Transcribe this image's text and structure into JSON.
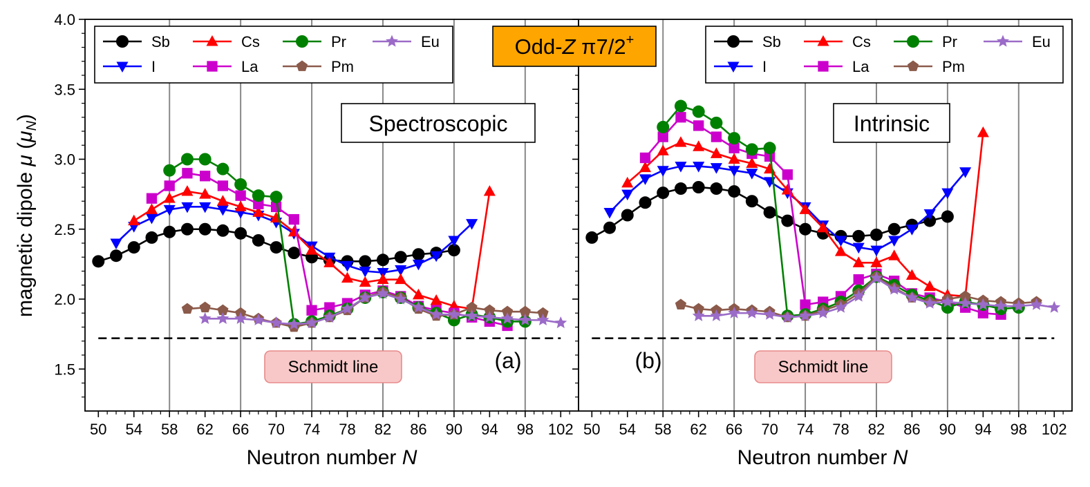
{
  "figure": {
    "title_prefix": "Odd-",
    "title_z": "Z",
    "title_pi": " π7/2",
    "title_sup": "+",
    "title_color": "#FFA500",
    "ylabel_prefix": "magnetic dipole ",
    "ylabel_mu": "μ",
    "ylabel_open": " (",
    "ylabel_unit": "μ",
    "ylabel_sub": "N",
    "ylabel_close": ")",
    "xlabel_prefix": "Neutron number ",
    "xlabel_var": "N",
    "schmidt_label": "Schmidt line",
    "schmidt_box_color": "#f8c8c8",
    "schmidt_value": 1.72
  },
  "chart_data": [
    {
      "type": "line",
      "panel": "(a)",
      "box_label": "Spectroscopic",
      "xlabel": "Neutron number N",
      "ylabel": "magnetic dipole μ (μN)",
      "xlim": [
        48.5,
        104
      ],
      "ylim": [
        1.2,
        4.0
      ],
      "xticks": [
        50,
        54,
        58,
        62,
        66,
        70,
        74,
        78,
        82,
        86,
        90,
        94,
        98,
        102
      ],
      "yticks": [
        1.5,
        2.0,
        2.5,
        3.0,
        3.5,
        4.0
      ],
      "yticklabels": [
        "1.5",
        "2.0",
        "2.5",
        "3.0",
        "3.5",
        "4.0"
      ],
      "grid_x": [
        58,
        66,
        74,
        82,
        90,
        98
      ],
      "reference_line": {
        "label": "Schmidt line",
        "y": 1.72,
        "x_range": [
          50,
          102
        ]
      },
      "series": [
        {
          "name": "Sb",
          "color": "#000000",
          "marker": "circle",
          "x": [
            50,
            52,
            54,
            56,
            58,
            60,
            62,
            64,
            66,
            68,
            70,
            72,
            74,
            76,
            78,
            80,
            82,
            84,
            86,
            88,
            90
          ],
          "y": [
            2.27,
            2.31,
            2.37,
            2.44,
            2.48,
            2.5,
            2.5,
            2.49,
            2.47,
            2.42,
            2.37,
            2.33,
            2.3,
            2.28,
            2.27,
            2.27,
            2.28,
            2.3,
            2.32,
            2.33,
            2.35
          ]
        },
        {
          "name": "I",
          "color": "#0000FF",
          "marker": "triangle-down",
          "x": [
            52,
            54,
            56,
            58,
            60,
            62,
            64,
            66,
            68,
            70,
            72,
            74,
            76,
            78,
            80,
            82,
            84,
            86,
            88,
            90,
            92
          ],
          "y": [
            2.4,
            2.52,
            2.58,
            2.64,
            2.66,
            2.66,
            2.64,
            2.62,
            2.6,
            2.55,
            2.47,
            2.38,
            2.3,
            2.24,
            2.2,
            2.19,
            2.21,
            2.25,
            2.31,
            2.42,
            2.54
          ]
        },
        {
          "name": "Cs",
          "color": "#FF0000",
          "marker": "triangle-up",
          "x": [
            54,
            56,
            58,
            60,
            62,
            64,
            66,
            68,
            70,
            72,
            74,
            76,
            78,
            80,
            82,
            84,
            86,
            88,
            90,
            92,
            94
          ],
          "y": [
            2.56,
            2.64,
            2.72,
            2.77,
            2.75,
            2.7,
            2.66,
            2.62,
            2.58,
            2.48,
            2.35,
            2.26,
            2.15,
            2.12,
            2.14,
            2.14,
            2.03,
            1.99,
            1.95,
            1.93,
            2.77
          ]
        },
        {
          "name": "La",
          "color": "#CC00CC",
          "marker": "square",
          "x": [
            56,
            58,
            60,
            62,
            64,
            66,
            68,
            70,
            72,
            74,
            76,
            78,
            80,
            82,
            84,
            86,
            88,
            90,
            92,
            94,
            96
          ],
          "y": [
            2.72,
            2.81,
            2.9,
            2.88,
            2.81,
            2.74,
            2.68,
            2.66,
            2.57,
            1.92,
            1.94,
            1.97,
            2.03,
            2.06,
            2.02,
            1.95,
            1.92,
            1.9,
            1.87,
            1.84,
            1.81
          ]
        },
        {
          "name": "Pr",
          "color": "#008000",
          "marker": "circle",
          "x": [
            58,
            60,
            62,
            64,
            66,
            68,
            70,
            72,
            74,
            76,
            78,
            80,
            82,
            84,
            86,
            88,
            90,
            92,
            94,
            96,
            98
          ],
          "y": [
            2.92,
            3.0,
            3.0,
            2.93,
            2.82,
            2.74,
            2.73,
            1.82,
            1.84,
            1.88,
            1.93,
            2.01,
            2.05,
            2.01,
            1.94,
            1.9,
            1.85,
            1.89,
            1.87,
            1.84,
            1.84
          ]
        },
        {
          "name": "Pm",
          "color": "#8B5A4A",
          "marker": "pentagon",
          "x": [
            60,
            62,
            64,
            66,
            68,
            70,
            72,
            74,
            76,
            78,
            80,
            82,
            84,
            86,
            88,
            90,
            92,
            94,
            96,
            98,
            100
          ],
          "y": [
            1.93,
            1.94,
            1.92,
            1.9,
            1.86,
            1.83,
            1.8,
            1.83,
            1.87,
            1.92,
            2.01,
            2.05,
            2.01,
            1.93,
            1.88,
            1.89,
            1.94,
            1.92,
            1.91,
            1.91,
            1.9
          ]
        },
        {
          "name": "Eu",
          "color": "#9B6BC8",
          "marker": "star",
          "x": [
            62,
            64,
            66,
            68,
            70,
            72,
            74,
            76,
            78,
            80,
            82,
            84,
            86,
            88,
            90,
            92,
            94,
            96,
            98,
            100,
            102
          ],
          "y": [
            1.86,
            1.86,
            1.86,
            1.85,
            1.83,
            1.82,
            1.83,
            1.87,
            1.93,
            2.01,
            2.04,
            2.0,
            1.94,
            1.89,
            1.89,
            1.88,
            1.87,
            1.86,
            1.85,
            1.85,
            1.83
          ]
        }
      ]
    },
    {
      "type": "line",
      "panel": "(b)",
      "box_label": "Intrinsic",
      "xlabel": "Neutron number N",
      "ylabel": "magnetic dipole μ (μN)",
      "xlim": [
        48.5,
        104
      ],
      "ylim": [
        1.2,
        4.0
      ],
      "xticks": [
        50,
        54,
        58,
        62,
        66,
        70,
        74,
        78,
        82,
        86,
        90,
        94,
        98,
        102
      ],
      "yticks": [
        1.5,
        2.0,
        2.5,
        3.0,
        3.5,
        4.0
      ],
      "yticklabels": [
        "",
        "",
        "",
        "",
        "",
        ""
      ],
      "grid_x": [
        58,
        66,
        74,
        82,
        90,
        98
      ],
      "reference_line": {
        "label": "Schmidt line",
        "y": 1.72,
        "x_range": [
          50,
          102
        ]
      },
      "series": [
        {
          "name": "Sb",
          "color": "#000000",
          "marker": "circle",
          "x": [
            50,
            52,
            54,
            56,
            58,
            60,
            62,
            64,
            66,
            68,
            70,
            72,
            74,
            76,
            78,
            80,
            82,
            84,
            86,
            88,
            90
          ],
          "y": [
            2.44,
            2.51,
            2.6,
            2.69,
            2.76,
            2.79,
            2.8,
            2.79,
            2.77,
            2.7,
            2.62,
            2.56,
            2.5,
            2.47,
            2.45,
            2.45,
            2.46,
            2.5,
            2.53,
            2.56,
            2.59
          ]
        },
        {
          "name": "I",
          "color": "#0000FF",
          "marker": "triangle-down",
          "x": [
            52,
            54,
            56,
            58,
            60,
            62,
            64,
            66,
            68,
            70,
            72,
            74,
            76,
            78,
            80,
            82,
            84,
            86,
            88,
            90,
            92
          ],
          "y": [
            2.62,
            2.75,
            2.86,
            2.92,
            2.95,
            2.95,
            2.94,
            2.92,
            2.9,
            2.84,
            2.76,
            2.66,
            2.53,
            2.42,
            2.37,
            2.35,
            2.42,
            2.5,
            2.61,
            2.76,
            2.91
          ]
        },
        {
          "name": "Cs",
          "color": "#FF0000",
          "marker": "triangle-up",
          "x": [
            54,
            56,
            58,
            60,
            62,
            64,
            66,
            68,
            70,
            72,
            74,
            76,
            78,
            80,
            82,
            84,
            86,
            88,
            90,
            92,
            94
          ],
          "y": [
            2.83,
            2.94,
            3.06,
            3.12,
            3.09,
            3.04,
            3.0,
            2.97,
            2.93,
            2.78,
            2.64,
            2.51,
            2.34,
            2.26,
            2.26,
            2.31,
            2.17,
            2.09,
            2.03,
            2.02,
            3.19
          ]
        },
        {
          "name": "La",
          "color": "#CC00CC",
          "marker": "square",
          "x": [
            56,
            58,
            60,
            62,
            64,
            66,
            68,
            70,
            72,
            74,
            76,
            78,
            80,
            82,
            84,
            86,
            88,
            90,
            92,
            94,
            96
          ],
          "y": [
            3.01,
            3.16,
            3.3,
            3.24,
            3.16,
            3.08,
            3.04,
            3.02,
            2.89,
            1.96,
            1.98,
            2.02,
            2.14,
            2.18,
            2.13,
            2.04,
            2.01,
            1.98,
            1.94,
            1.9,
            1.89
          ]
        },
        {
          "name": "Pr",
          "color": "#008000",
          "marker": "circle",
          "x": [
            58,
            60,
            62,
            64,
            66,
            68,
            70,
            72,
            74,
            76,
            78,
            80,
            82,
            84,
            86,
            88,
            90,
            92,
            94,
            96,
            98
          ],
          "y": [
            3.23,
            3.38,
            3.34,
            3.26,
            3.15,
            3.07,
            3.08,
            1.88,
            1.89,
            1.93,
            1.98,
            2.06,
            2.16,
            2.1,
            2.03,
            1.99,
            1.94,
            1.98,
            1.96,
            1.93,
            1.94
          ]
        },
        {
          "name": "Pm",
          "color": "#8B5A4A",
          "marker": "pentagon",
          "x": [
            60,
            62,
            64,
            66,
            68,
            70,
            72,
            74,
            76,
            78,
            80,
            82,
            84,
            86,
            88,
            90,
            92,
            94,
            96,
            98,
            100
          ],
          "y": [
            1.96,
            1.93,
            1.92,
            1.93,
            1.92,
            1.91,
            1.87,
            1.88,
            1.92,
            1.96,
            2.04,
            2.16,
            2.08,
            2.01,
            1.98,
            2.0,
            2.02,
            1.99,
            1.98,
            1.97,
            1.98
          ]
        },
        {
          "name": "Eu",
          "color": "#9B6BC8",
          "marker": "star",
          "x": [
            62,
            64,
            66,
            68,
            70,
            72,
            74,
            76,
            78,
            80,
            82,
            84,
            86,
            88,
            90,
            92,
            94,
            96,
            98,
            100,
            102
          ],
          "y": [
            1.88,
            1.88,
            1.9,
            1.9,
            1.89,
            1.87,
            1.88,
            1.9,
            1.94,
            2.02,
            2.15,
            2.07,
            2.01,
            1.97,
            1.98,
            1.97,
            1.96,
            1.95,
            1.95,
            1.96,
            1.94
          ]
        }
      ]
    }
  ]
}
